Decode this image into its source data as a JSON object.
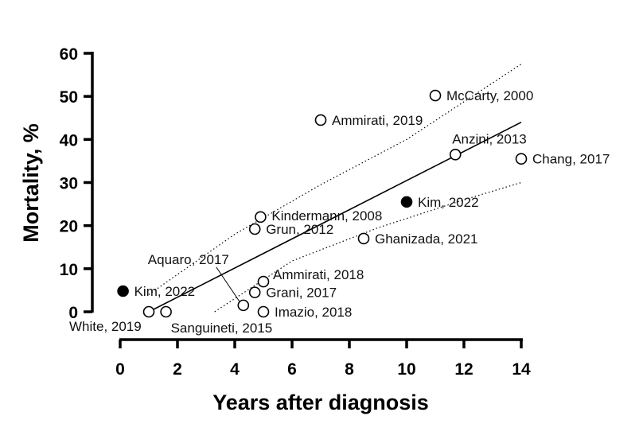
{
  "chart_data": {
    "type": "scatter",
    "xlabel": "Years after diagnosis",
    "ylabel": "Mortality, %",
    "xlim": [
      0,
      14
    ],
    "ylim": [
      0,
      60
    ],
    "x_ticks": [
      0,
      2,
      4,
      6,
      8,
      10,
      12,
      14
    ],
    "y_ticks": [
      0,
      10,
      20,
      30,
      40,
      50,
      60
    ],
    "grid": false,
    "points": [
      {
        "label": "McCarty, 2000",
        "x": 11.0,
        "y": 50.2,
        "filled": false
      },
      {
        "label": "Ammirati, 2019",
        "x": 7.0,
        "y": 44.5,
        "filled": false
      },
      {
        "label": "Anzini, 2013",
        "x": 11.7,
        "y": 36.5,
        "filled": false
      },
      {
        "label": "Chang, 2017",
        "x": 14.0,
        "y": 35.5,
        "filled": false
      },
      {
        "label": "Kim, 2022",
        "x": 10.0,
        "y": 25.5,
        "filled": true
      },
      {
        "label": "Kindermann, 2008",
        "x": 4.9,
        "y": 22.0,
        "filled": false
      },
      {
        "label": "Grun, 2012",
        "x": 4.7,
        "y": 19.2,
        "filled": false
      },
      {
        "label": "Ghanizada, 2021",
        "x": 8.5,
        "y": 17.0,
        "filled": false
      },
      {
        "label": "Ammirati, 2018",
        "x": 5.0,
        "y": 7.0,
        "filled": false
      },
      {
        "label": "Grani, 2017",
        "x": 4.7,
        "y": 4.5,
        "filled": false
      },
      {
        "label": "Aquaro, 2017",
        "x": 4.3,
        "y": 1.5,
        "filled": false
      },
      {
        "label": "Imazio, 2018",
        "x": 5.0,
        "y": 0.0,
        "filled": false
      },
      {
        "label": "Kim, 2022",
        "x": 0.1,
        "y": 4.8,
        "filled": true
      },
      {
        "label": "White, 2019",
        "x": 1.0,
        "y": 0.0,
        "filled": false
      },
      {
        "label": "Sanguineti, 2015",
        "x": 1.6,
        "y": 0.0,
        "filled": false
      }
    ],
    "fit_line": {
      "x": [
        1.0,
        14.0
      ],
      "y": [
        0.0,
        44.0
      ]
    },
    "ci_upper": {
      "x": [
        1.0,
        4.0,
        7.0,
        10.0,
        14.0
      ],
      "y": [
        4.0,
        18.0,
        29.5,
        40.0,
        57.5
      ]
    },
    "ci_lower": {
      "x": [
        3.3,
        6.0,
        9.0,
        12.0,
        14.0
      ],
      "y": [
        0.0,
        11.8,
        19.5,
        26.0,
        30.0
      ]
    }
  }
}
